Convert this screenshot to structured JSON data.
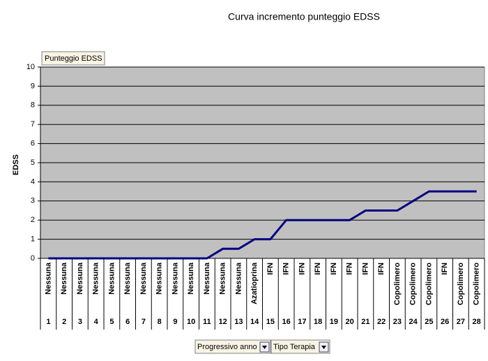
{
  "chart_data": {
    "type": "line",
    "title": "Curva incremento punteggio EDSS",
    "y_label": "EDSS",
    "categories": [
      "1",
      "2",
      "3",
      "4",
      "5",
      "6",
      "7",
      "8",
      "9",
      "10",
      "11",
      "12",
      "13",
      "14",
      "15",
      "16",
      "17",
      "18",
      "19",
      "20",
      "21",
      "22",
      "23",
      "24",
      "25",
      "26",
      "27",
      "28"
    ],
    "therapies": [
      "Nessuna",
      "Nessuna",
      "Nessuna",
      "Nessuna",
      "Nessuna",
      "Nessuna",
      "Nessuna",
      "Nessuna",
      "Nessuna",
      "Nessuna",
      "Nessuna",
      "Nessuna",
      "Nessuna",
      "Azatioprina",
      "IFN",
      "IFN",
      "IFN",
      "IFN",
      "IFN",
      "IFN",
      "IFN",
      "IFN",
      "Copolimero",
      "Copolimero",
      "Copolimero",
      "IFN",
      "Copolimero",
      "Copolimero"
    ],
    "series": [
      {
        "name": "Punteggio EDSS",
        "color": "#000080",
        "values": [
          0,
          0,
          0,
          0,
          0,
          0,
          0,
          0,
          0,
          0,
          0,
          0.5,
          0.5,
          1,
          1,
          2,
          2,
          2,
          2,
          2,
          2.5,
          2.5,
          2.5,
          3,
          3.5,
          3.5,
          3.5,
          3.5
        ]
      }
    ],
    "ylim": [
      0,
      10
    ],
    "yticks": [
      0,
      1,
      2,
      3,
      4,
      5,
      6,
      7,
      8,
      9,
      10
    ],
    "grid": true,
    "field_buttons": [
      "Progressivo anno",
      "Tipo Terapia"
    ]
  }
}
